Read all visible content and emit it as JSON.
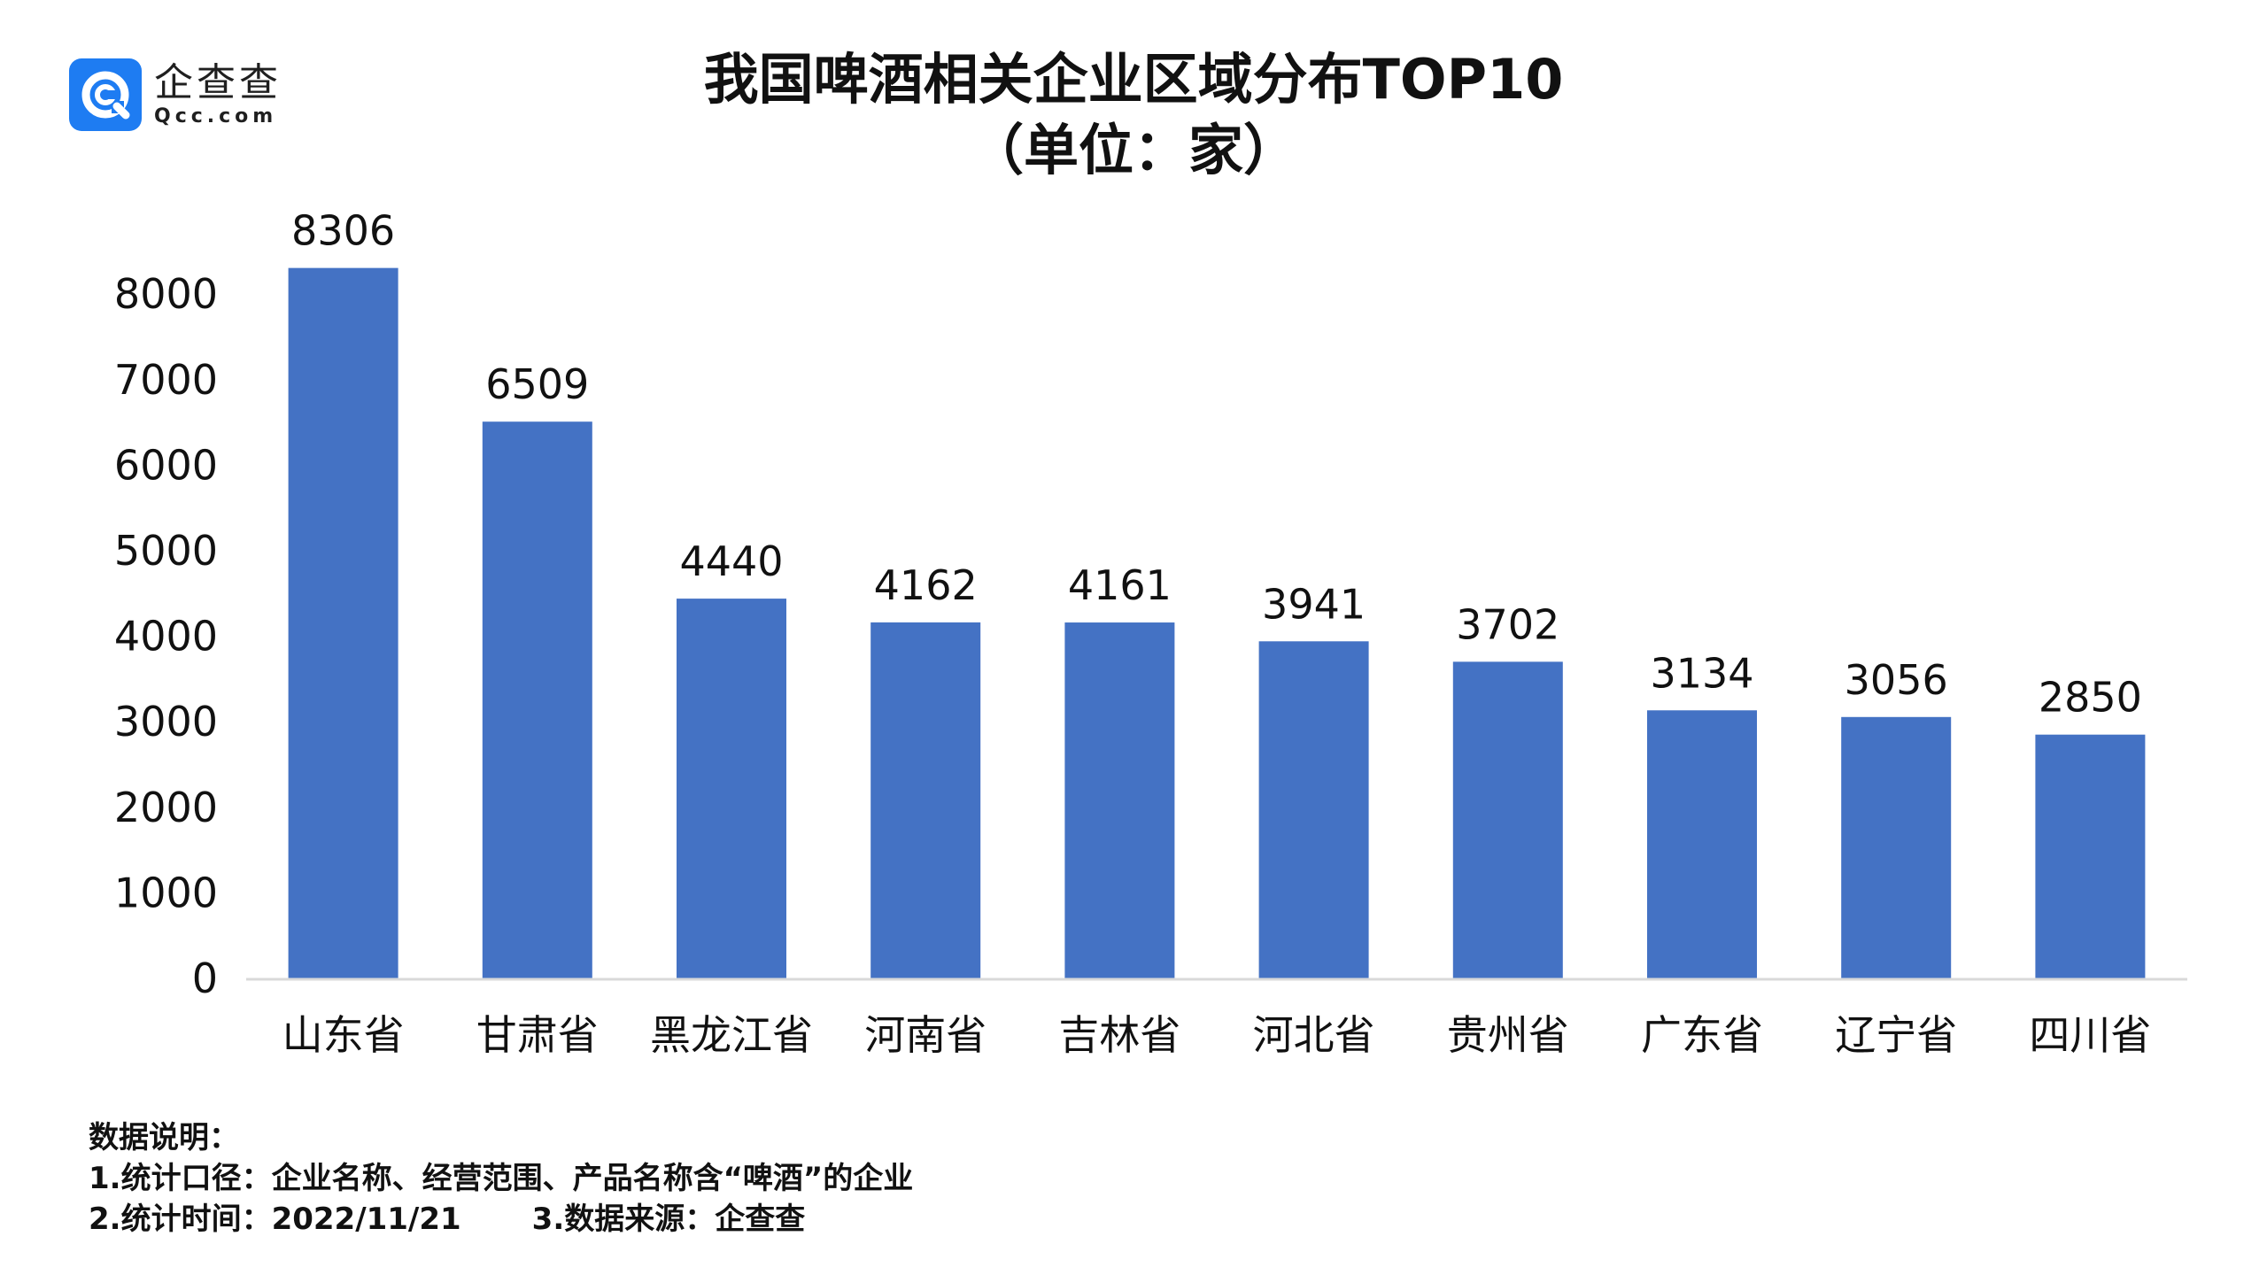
{
  "logo": {
    "name_cn": "企查查",
    "name_en": "Qcc.com",
    "color": "#1e7cf2",
    "icon": "qcc-logo-icon"
  },
  "chart_data": {
    "type": "bar",
    "title": "我国啤酒相关企业区域分布TOP10",
    "subtitle": "（单位：家）",
    "categories": [
      "山东省",
      "甘肃省",
      "黑龙江省",
      "河南省",
      "吉林省",
      "河北省",
      "贵州省",
      "广东省",
      "辽宁省",
      "四川省"
    ],
    "values": [
      8306,
      6509,
      4440,
      4162,
      4161,
      3941,
      3702,
      3134,
      3056,
      2850
    ],
    "data_labels": [
      "8306",
      "6509",
      "4440",
      "4162",
      "4161",
      "3941",
      "3702",
      "3134",
      "3056",
      "2850"
    ],
    "yticks": [
      "0",
      "1000",
      "2000",
      "3000",
      "4000",
      "5000",
      "6000",
      "7000",
      "8000"
    ],
    "ylim": [
      0,
      8000
    ],
    "grid": false,
    "legend": "none",
    "bar_color": "#4472c4",
    "axis_color": "#d9d9d9"
  },
  "notes": {
    "heading": "数据说明：",
    "line1": "1.统计口径：企业名称、经营范围、产品名称含“啤酒”的企业",
    "line2a": "2.统计时间：2022/11/21",
    "line2b": "3.数据来源：企查查"
  }
}
